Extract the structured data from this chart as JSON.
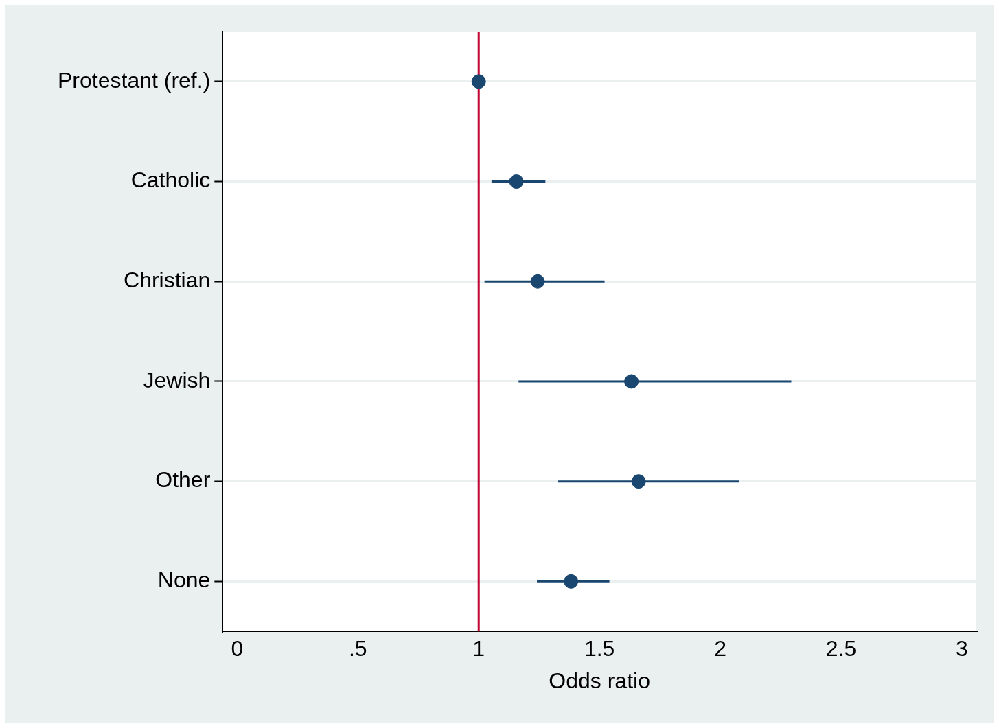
{
  "chart_data": {
    "type": "scatter",
    "orientation": "horizontal",
    "xlabel": "Odds ratio",
    "categories": [
      "Protestant (ref.)",
      "Catholic",
      "Christian",
      "Jewish",
      "Other",
      "None"
    ],
    "series": [
      {
        "color": "#1a476f",
        "values": [
          1.0,
          1.156,
          1.244,
          1.632,
          1.662,
          1.382
        ],
        "errors": [
          null,
          [
            1.053,
            1.276
          ],
          [
            1.024,
            1.521
          ],
          [
            1.165,
            2.294
          ],
          [
            1.329,
            2.079
          ],
          [
            1.241,
            1.541
          ]
        ]
      }
    ],
    "xlim": [
      -0.06,
      3.06
    ],
    "xticks": [
      0,
      {
        "value": 0.5,
        "label": ".5"
      },
      1,
      1.5,
      2,
      2.5,
      3
    ],
    "ref_lines": [
      {
        "axis": "x",
        "value": 1,
        "color": "#c10534"
      }
    ],
    "grid": "y",
    "legend": false,
    "marker": "circle"
  }
}
